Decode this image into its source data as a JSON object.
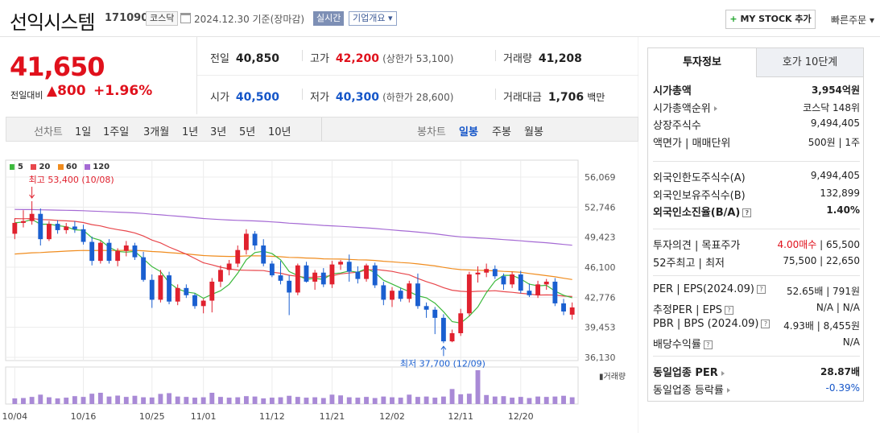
{
  "header": {
    "stock_name": "선익시스템",
    "stock_code": "171090",
    "market": "코스닥",
    "date_text": "2024.12.30 기준(장마감)",
    "realtime_label": "실시간",
    "company_label": "기업개요 ▾",
    "mystock_label": "MY STOCK 추가",
    "mystock_plus": "+",
    "quick_order_label": "빠른주문 ▾"
  },
  "price": {
    "current": "41,650",
    "change_label": "전일대비",
    "change_amount": "▲800",
    "change_pct": "+1.96%"
  },
  "quotes": {
    "prev_close": {
      "label": "전일",
      "value": "40,850"
    },
    "high": {
      "label": "고가",
      "value": "42,200",
      "sub": "(상한가 53,100)"
    },
    "volume": {
      "label": "거래량",
      "value": "41,208"
    },
    "open": {
      "label": "시가",
      "value": "40,500"
    },
    "low": {
      "label": "저가",
      "value": "40,300",
      "sub": "(하한가 28,600)"
    },
    "amount": {
      "label": "거래대금",
      "value": "1,706",
      "unit": "백만"
    }
  },
  "period_bar": {
    "line_label": "선차트",
    "line_periods": [
      "1일",
      "1주일",
      "3개월",
      "1년",
      "3년",
      "5년",
      "10년"
    ],
    "candle_label": "봉차트",
    "candle_periods": [
      "일봉",
      "주봉",
      "월봉"
    ],
    "active_candle": "일봉"
  },
  "chart_data": {
    "type": "candlestick",
    "legend": [
      {
        "name": "5",
        "color": "#3cb93c"
      },
      {
        "name": "20",
        "color": "#e8474c"
      },
      {
        "name": "60",
        "color": "#f08c1e"
      },
      {
        "name": "120",
        "color": "#a56ad4"
      }
    ],
    "y_ticks": [
      "56,069",
      "52,746",
      "49,423",
      "46,100",
      "42,776",
      "39,453",
      "36,130"
    ],
    "ylim": [
      36130,
      56069
    ],
    "x_ticks": [
      "10/04",
      "10/16",
      "10/25",
      "11/01",
      "11/12",
      "11/21",
      "12/02",
      "12/11",
      "12/20"
    ],
    "high_annotation": "최고 53,400 (10/08)",
    "low_annotation": "최저 37,700 (12/09)",
    "volume_label": "거래량",
    "candles": [
      [
        49800,
        51500,
        49200,
        51000
      ],
      [
        51000,
        52400,
        50500,
        51200
      ],
      [
        51200,
        53400,
        50800,
        52000
      ],
      [
        52000,
        52600,
        48500,
        49200
      ],
      [
        49200,
        51200,
        49000,
        50900
      ],
      [
        50900,
        51300,
        49800,
        50200
      ],
      [
        50200,
        51000,
        49800,
        50600
      ],
      [
        50600,
        51200,
        49900,
        50300
      ],
      [
        50300,
        50800,
        48600,
        48900
      ],
      [
        48900,
        49500,
        46300,
        46800
      ],
      [
        46800,
        49000,
        46500,
        48800
      ],
      [
        48800,
        49200,
        46500,
        46800
      ],
      [
        46800,
        48200,
        46200,
        47900
      ],
      [
        47900,
        49000,
        47300,
        48500
      ],
      [
        48500,
        48800,
        46900,
        47200
      ],
      [
        47200,
        47800,
        44500,
        44700
      ],
      [
        44700,
        45300,
        41600,
        42500
      ],
      [
        42500,
        45800,
        42200,
        45200
      ],
      [
        45200,
        45600,
        42000,
        42300
      ],
      [
        42300,
        44200,
        41900,
        43800
      ],
      [
        43800,
        44200,
        42700,
        43000
      ],
      [
        43000,
        43200,
        41500,
        41800
      ],
      [
        41800,
        42600,
        41000,
        42400
      ],
      [
        42400,
        44900,
        41100,
        44500
      ],
      [
        44500,
        46300,
        43900,
        45800
      ],
      [
        45800,
        46900,
        45200,
        46500
      ],
      [
        46500,
        48500,
        46100,
        48000
      ],
      [
        48000,
        50300,
        47500,
        49800
      ],
      [
        49800,
        50100,
        48000,
        48500
      ],
      [
        48500,
        49200,
        46200,
        46500
      ],
      [
        46500,
        46800,
        45000,
        45200
      ],
      [
        45200,
        46800,
        44200,
        44600
      ],
      [
        44600,
        45200,
        40800,
        43300
      ],
      [
        43300,
        46500,
        43000,
        46300
      ],
      [
        46300,
        46700,
        44400,
        44500
      ],
      [
        44500,
        45800,
        43600,
        45500
      ],
      [
        45500,
        46000,
        43900,
        44200
      ],
      [
        44200,
        46800,
        43800,
        46400
      ],
      [
        46400,
        46900,
        45800,
        46700
      ],
      [
        46700,
        47500,
        44500,
        45600
      ],
      [
        45600,
        46200,
        44300,
        44800
      ],
      [
        44800,
        46500,
        44500,
        46300
      ],
      [
        46300,
        46600,
        43800,
        44100
      ],
      [
        44100,
        44500,
        41900,
        42500
      ],
      [
        42500,
        43900,
        41700,
        43500
      ],
      [
        43500,
        43800,
        42300,
        42600
      ],
      [
        42600,
        44600,
        42200,
        44300
      ],
      [
        44300,
        45400,
        41500,
        41800
      ],
      [
        41800,
        42200,
        40500,
        41400
      ],
      [
        41400,
        41700,
        38700,
        40500
      ],
      [
        40500,
        40900,
        37700,
        37900
      ],
      [
        37900,
        39200,
        37800,
        38800
      ],
      [
        38800,
        41500,
        38500,
        41000
      ],
      [
        41000,
        45600,
        40700,
        45300
      ],
      [
        45300,
        46200,
        44400,
        45500
      ],
      [
        45500,
        46500,
        45000,
        45900
      ],
      [
        45900,
        46300,
        44800,
        45100
      ],
      [
        45100,
        45400,
        43600,
        44200
      ],
      [
        44200,
        45600,
        43800,
        45300
      ],
      [
        45300,
        45700,
        43200,
        43500
      ],
      [
        43500,
        44300,
        42800,
        43000
      ],
      [
        43000,
        44600,
        42700,
        44200
      ],
      [
        44200,
        44800,
        43600,
        44500
      ],
      [
        44500,
        44900,
        41800,
        42100
      ],
      [
        42100,
        42600,
        40800,
        41200
      ],
      [
        40850,
        42200,
        40300,
        41650
      ]
    ],
    "volumes": [
      30,
      32,
      38,
      50,
      36,
      30,
      34,
      42,
      38,
      55,
      60,
      40,
      45,
      38,
      44,
      36,
      35,
      54,
      58,
      40,
      38,
      34,
      36,
      60,
      38,
      34,
      36,
      42,
      40,
      30,
      34,
      36,
      44,
      38,
      34,
      36,
      32,
      50,
      46,
      36,
      34,
      38,
      32,
      40,
      36,
      34,
      50,
      38,
      40,
      34,
      40,
      80,
      52,
      55,
      180,
      48,
      40,
      42,
      34,
      38,
      32,
      40,
      38,
      40,
      44,
      36
    ]
  },
  "side_panel": {
    "tabs": [
      "투자정보",
      "호가 10단계"
    ],
    "group1": [
      {
        "k": "시가총액",
        "v": "3,954억원",
        "bold": true
      },
      {
        "k": "시가총액순위",
        "v": "코스닥 148위",
        "arrow": true
      },
      {
        "k": "상장주식수",
        "v": "9,494,405"
      },
      {
        "k": "액면가 | 매매단위",
        "v": "500원 | 1주"
      }
    ],
    "group2": [
      {
        "k": "외국인한도주식수(A)",
        "v": "9,494,405"
      },
      {
        "k": "외국인보유주식수(B)",
        "v": "132,899"
      },
      {
        "k": "외국인소진율(B/A)",
        "v": "1.40%",
        "bold": true,
        "help": true
      }
    ],
    "group3": [
      {
        "k": "투자의견 | 목표주가",
        "v_red": "4.00매수",
        "v": " | 65,500"
      },
      {
        "k": "52주최고 | 최저",
        "v": "75,500 | 22,650"
      }
    ],
    "group4": [
      {
        "k": "PER | EPS(2024.09)",
        "v": "52.65배 | 791원",
        "help": true
      },
      {
        "k": "추정PER | EPS",
        "v": "N/A | N/A",
        "help": true
      },
      {
        "k": "PBR | BPS (2024.09)",
        "v": "4.93배 | 8,455원",
        "help": true
      },
      {
        "k": "배당수익률",
        "v": "N/A",
        "help": true
      }
    ],
    "group5": [
      {
        "k": "동일업종 PER",
        "v": "28.87배",
        "bold": true,
        "arrow": true
      },
      {
        "k": "동일업종 등락률",
        "v": "-0.39%",
        "blue": true,
        "arrow": true
      }
    ]
  }
}
